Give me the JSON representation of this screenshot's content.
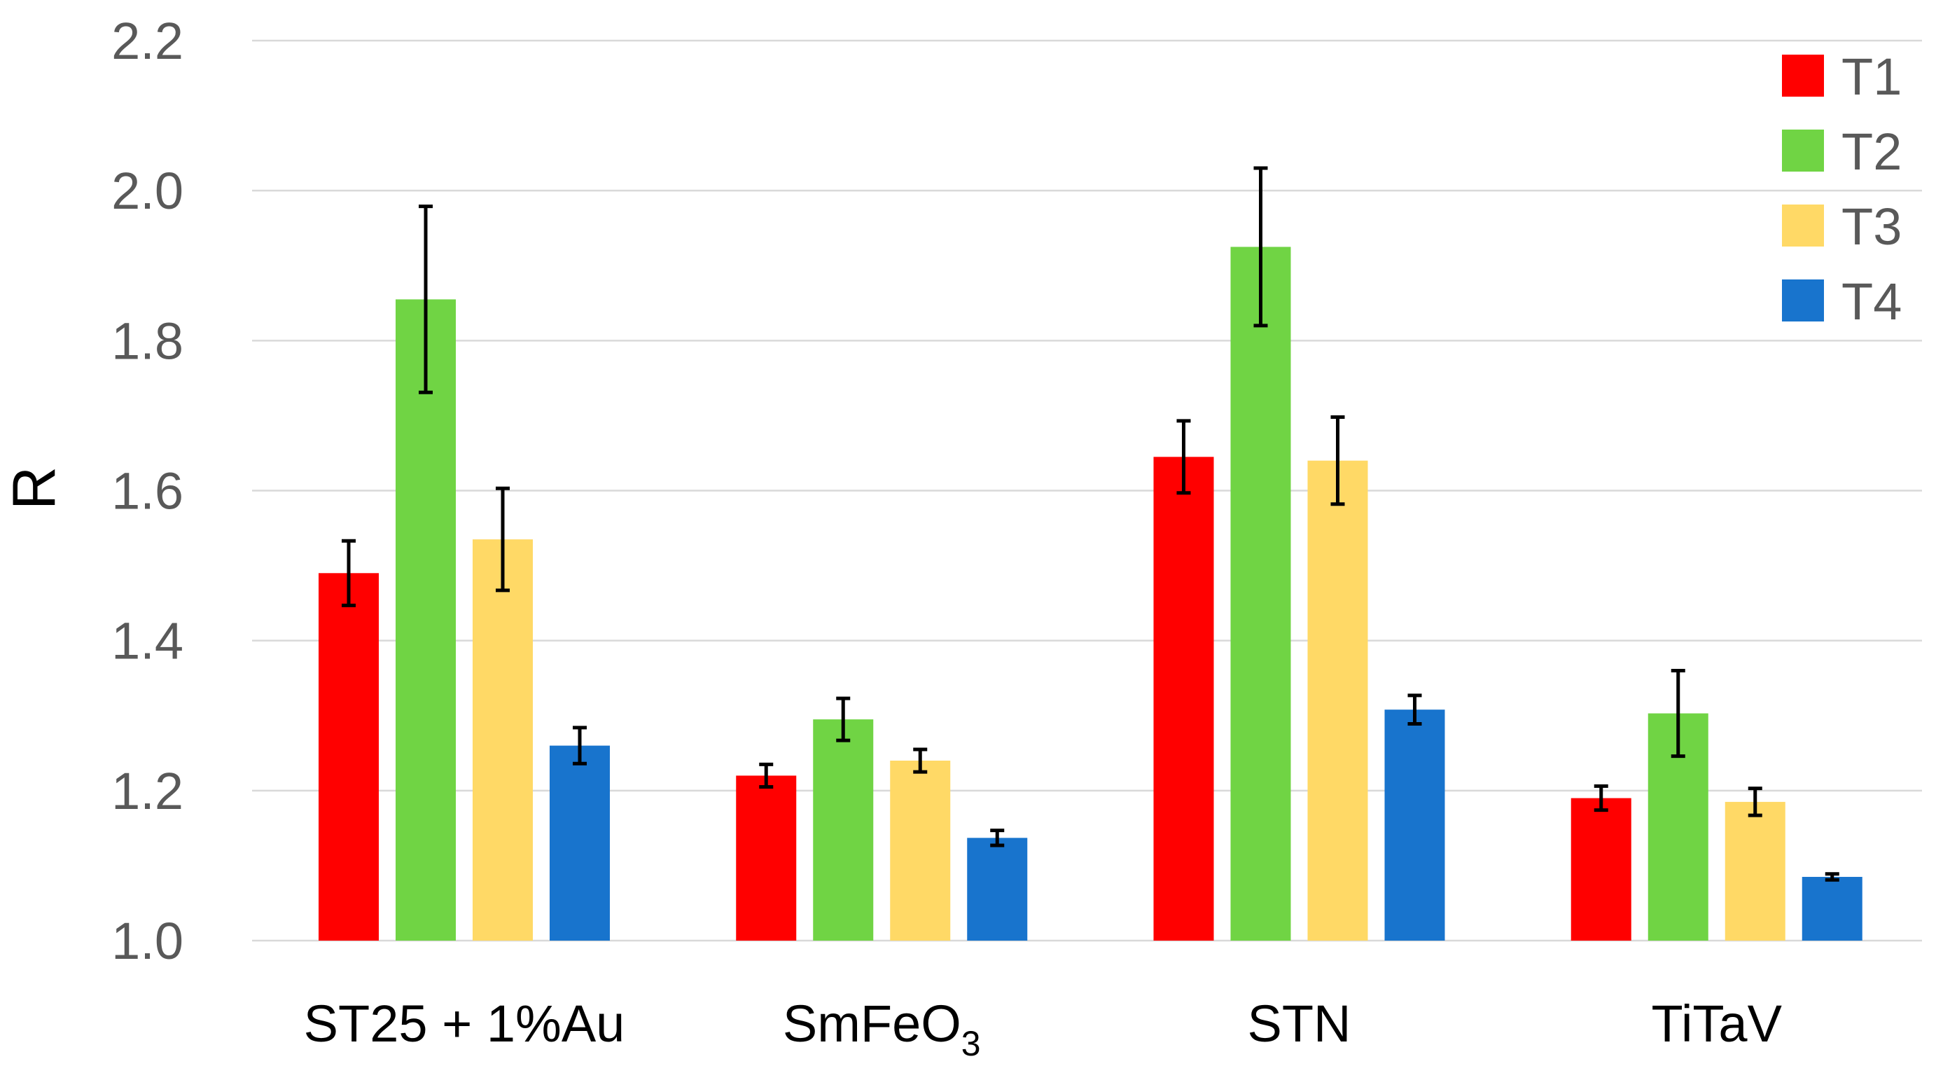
{
  "chart_data": {
    "type": "bar",
    "title": "",
    "xlabel": "",
    "ylabel": "R",
    "ylim": [
      1.0,
      2.2
    ],
    "yticks": [
      "1.0",
      "1.2",
      "1.4",
      "1.6",
      "1.8",
      "2.0",
      "2.2"
    ],
    "grid": true,
    "legend_position": "top-right",
    "categories": [
      {
        "main": "ST25 + 1%Au",
        "sub": ""
      },
      {
        "main": "SmFeO",
        "sub": "3"
      },
      {
        "main": "STN",
        "sub": ""
      },
      {
        "main": "TiTaV",
        "sub": ""
      }
    ],
    "series": [
      {
        "name": "T1",
        "color": "#ff0000",
        "values": [
          1.49,
          1.22,
          1.645,
          1.19
        ],
        "errors": [
          0.043,
          0.015,
          0.048,
          0.016
        ]
      },
      {
        "name": "T2",
        "color": "#70d444",
        "values": [
          1.855,
          1.295,
          1.925,
          1.303
        ],
        "errors": [
          0.124,
          0.028,
          0.105,
          0.057
        ]
      },
      {
        "name": "T3",
        "color": "#ffd966",
        "values": [
          1.535,
          1.24,
          1.64,
          1.185
        ],
        "errors": [
          0.068,
          0.015,
          0.058,
          0.018
        ]
      },
      {
        "name": "T4",
        "color": "#1874cd",
        "values": [
          1.26,
          1.137,
          1.308,
          1.085
        ],
        "errors": [
          0.024,
          0.01,
          0.019,
          0.004
        ]
      }
    ]
  }
}
